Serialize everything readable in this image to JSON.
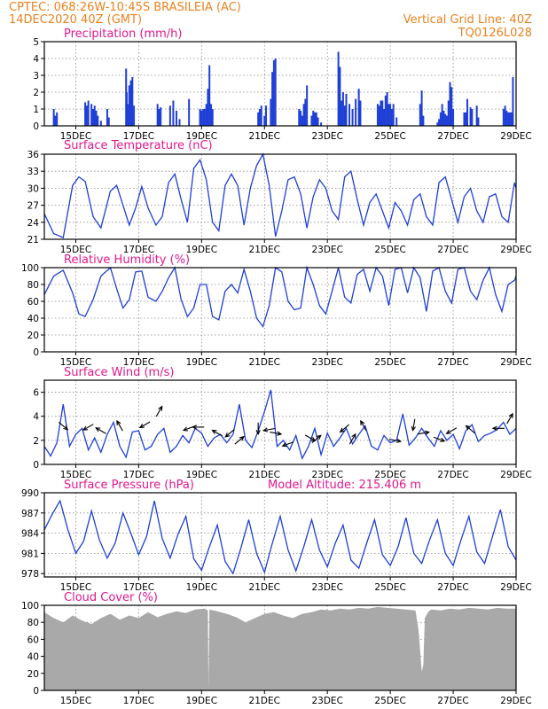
{
  "header": {
    "left_line1": "CPTEC:   068:26W-10:45S   BRASILEIA (AC)",
    "left_line2": "14DEC2020 40Z (GMT)",
    "right_line1": "Vertical Grid Line: 40Z",
    "right_line2": "TQ0126L028"
  },
  "colors": {
    "series": "#1f3fd6",
    "title": "#e0188c",
    "header": "#e8821e",
    "cloud": "#a9a9a9"
  },
  "x_ticks": [
    "15DEC",
    "17DEC",
    "19DEC",
    "21DEC",
    "23DEC",
    "25DEC",
    "27DEC",
    "29DEC"
  ],
  "x_tick_days": [
    15,
    17,
    19,
    21,
    23,
    25,
    27,
    29
  ],
  "x_range": [
    14.0,
    29.0
  ],
  "chart_data": [
    {
      "type": "bar",
      "title": "Precipitation (mm/h)",
      "ylim": [
        0,
        5
      ],
      "yticks": [
        0,
        1,
        2,
        3,
        4,
        5
      ],
      "x": [
        14.3,
        14.35,
        14.4,
        15.3,
        15.35,
        15.4,
        15.5,
        15.55,
        15.6,
        15.65,
        15.7,
        15.8,
        16.0,
        16.05,
        16.6,
        16.62,
        16.65,
        16.7,
        16.75,
        16.8,
        16.85,
        17.6,
        17.65,
        17.7,
        18.0,
        18.1,
        18.2,
        18.3,
        18.6,
        18.95,
        19.0,
        19.05,
        19.1,
        19.15,
        19.2,
        19.25,
        19.3,
        19.35,
        20.8,
        20.85,
        20.9,
        21.0,
        21.05,
        21.2,
        21.25,
        21.3,
        21.35,
        22.1,
        22.15,
        22.2,
        22.25,
        22.3,
        22.35,
        22.5,
        22.55,
        22.6,
        22.65,
        22.7,
        22.8,
        23.35,
        23.4,
        23.45,
        23.5,
        23.55,
        23.6,
        23.7,
        23.8,
        23.9,
        24.0,
        24.05,
        24.6,
        24.65,
        24.7,
        24.75,
        24.8,
        24.85,
        24.9,
        24.95,
        25.0,
        25.05,
        25.1,
        25.2,
        25.95,
        26.0,
        26.05,
        26.5,
        26.55,
        26.6,
        26.65,
        26.7,
        26.75,
        26.8,
        26.85,
        26.9,
        26.95,
        27.0,
        27.35,
        27.4,
        27.45,
        27.55,
        27.6,
        27.75,
        27.8,
        28.6,
        28.65,
        28.7,
        28.75,
        28.8,
        28.85,
        28.9
      ],
      "values": [
        1.0,
        0.6,
        0.8,
        1.4,
        1.2,
        1.5,
        1.3,
        1.0,
        1.2,
        0.9,
        0.6,
        0.3,
        1.0,
        0.5,
        3.4,
        2.0,
        1.3,
        2.4,
        2.7,
        2.9,
        1.2,
        1.3,
        1.0,
        1.1,
        1.2,
        1.5,
        0.9,
        0.4,
        1.6,
        1.0,
        0.9,
        1.0,
        1.0,
        1.3,
        2.2,
        3.6,
        1.3,
        1.0,
        0.8,
        1.0,
        1.2,
        0.6,
        1.2,
        1.6,
        3.2,
        3.9,
        4.0,
        1.0,
        0.9,
        0.6,
        1.3,
        1.6,
        2.4,
        0.6,
        0.9,
        0.8,
        0.8,
        0.5,
        0.2,
        4.4,
        3.5,
        1.5,
        2.0,
        1.2,
        1.9,
        1.3,
        1.0,
        1.6,
        2.2,
        1.5,
        1.3,
        1.2,
        1.5,
        1.5,
        1.0,
        1.8,
        2.0,
        1.3,
        1.3,
        1.0,
        1.3,
        0.5,
        1.3,
        2.1,
        0.6,
        0.2,
        0.4,
        0.8,
        1.3,
        0.9,
        0.7,
        0.6,
        1.5,
        2.6,
        2.3,
        1.0,
        0.8,
        0.8,
        1.6,
        1.1,
        1.0,
        1.2,
        0.5,
        1.0,
        1.2,
        0.9,
        0.8,
        0.8,
        0.8,
        2.9
      ]
    },
    {
      "type": "line",
      "title": "Surface Temperature (nC)",
      "ylim": [
        21,
        36
      ],
      "yticks": [
        21,
        24,
        27,
        30,
        33,
        36
      ],
      "x": [
        14.0,
        14.3,
        14.6,
        14.9,
        15.1,
        15.3,
        15.55,
        15.8,
        16.1,
        16.3,
        16.5,
        16.7,
        16.9,
        17.1,
        17.3,
        17.55,
        17.75,
        17.95,
        18.15,
        18.35,
        18.55,
        18.75,
        18.95,
        19.15,
        19.35,
        19.55,
        19.75,
        19.95,
        20.15,
        20.35,
        20.55,
        20.75,
        20.95,
        21.15,
        21.35,
        21.55,
        21.75,
        21.95,
        22.15,
        22.35,
        22.55,
        22.75,
        22.95,
        23.15,
        23.35,
        23.55,
        23.75,
        23.95,
        24.15,
        24.35,
        24.55,
        24.75,
        24.95,
        25.15,
        25.35,
        25.55,
        25.75,
        25.95,
        26.15,
        26.35,
        26.55,
        26.75,
        26.95,
        27.15,
        27.35,
        27.55,
        27.75,
        27.95,
        28.15,
        28.35,
        28.55,
        28.75,
        28.95,
        29.0
      ],
      "values": [
        25.5,
        22.0,
        21.3,
        30.5,
        32.0,
        31.2,
        25.0,
        23.0,
        29.5,
        30.5,
        27.0,
        23.5,
        26.5,
        30.3,
        26.5,
        23.5,
        25.0,
        31.0,
        32.5,
        28.0,
        24.0,
        33.5,
        35.0,
        31.5,
        24.0,
        22.5,
        30.5,
        32.5,
        30.5,
        23.5,
        30.0,
        34.0,
        36.0,
        30.5,
        21.5,
        26.0,
        31.5,
        32.0,
        29.0,
        23.0,
        28.5,
        31.5,
        30.0,
        26.0,
        24.5,
        32.0,
        33.0,
        28.0,
        23.5,
        27.5,
        29.0,
        26.0,
        23.0,
        27.5,
        26.0,
        23.5,
        28.0,
        29.0,
        25.0,
        23.5,
        31.0,
        32.0,
        28.0,
        24.0,
        28.5,
        30.0,
        26.0,
        24.0,
        28.5,
        29.0,
        25.0,
        24.0,
        31.0,
        30.0
      ]
    },
    {
      "type": "line",
      "title": "Relative Humidity (%)",
      "ylim": [
        0,
        100
      ],
      "yticks": [
        0,
        20,
        40,
        60,
        80,
        100
      ],
      "x": [
        14.0,
        14.3,
        14.6,
        14.9,
        15.1,
        15.3,
        15.55,
        15.8,
        16.1,
        16.3,
        16.5,
        16.7,
        16.9,
        17.1,
        17.3,
        17.55,
        17.75,
        17.95,
        18.15,
        18.35,
        18.55,
        18.75,
        18.95,
        19.15,
        19.35,
        19.55,
        19.75,
        19.95,
        20.15,
        20.35,
        20.55,
        20.75,
        20.95,
        21.15,
        21.35,
        21.55,
        21.75,
        21.95,
        22.15,
        22.35,
        22.55,
        22.75,
        22.95,
        23.15,
        23.35,
        23.55,
        23.75,
        23.95,
        24.15,
        24.35,
        24.55,
        24.75,
        24.95,
        25.15,
        25.35,
        25.55,
        25.75,
        25.95,
        26.15,
        26.35,
        26.55,
        26.75,
        26.95,
        27.15,
        27.35,
        27.55,
        27.75,
        27.95,
        28.15,
        28.35,
        28.55,
        28.75,
        28.95,
        29.0
      ],
      "values": [
        68,
        90,
        97,
        70,
        45,
        42,
        62,
        90,
        100,
        75,
        52,
        62,
        95,
        96,
        65,
        60,
        72,
        88,
        100,
        62,
        42,
        52,
        80,
        80,
        42,
        38,
        72,
        80,
        70,
        98,
        72,
        40,
        30,
        55,
        100,
        95,
        60,
        50,
        52,
        100,
        80,
        55,
        45,
        72,
        100,
        65,
        58,
        92,
        98,
        72,
        100,
        90,
        55,
        98,
        100,
        70,
        100,
        88,
        48,
        96,
        100,
        72,
        58,
        98,
        100,
        72,
        62,
        85,
        100,
        68,
        48,
        80,
        85,
        90
      ]
    },
    {
      "type": "line",
      "title": "Surface Wind (m/s)",
      "ylim": [
        0,
        7
      ],
      "yticks": [
        0,
        2,
        4,
        6
      ],
      "x": [
        14.0,
        14.2,
        14.4,
        14.6,
        14.8,
        15.0,
        15.2,
        15.4,
        15.6,
        15.8,
        16.0,
        16.2,
        16.4,
        16.6,
        16.8,
        17.0,
        17.2,
        17.4,
        17.6,
        17.8,
        18.0,
        18.2,
        18.4,
        18.6,
        18.8,
        19.0,
        19.2,
        19.4,
        19.6,
        19.8,
        20.0,
        20.2,
        20.4,
        20.6,
        20.8,
        21.0,
        21.2,
        21.4,
        21.6,
        21.8,
        22.0,
        22.2,
        22.4,
        22.6,
        22.8,
        23.0,
        23.2,
        23.4,
        23.6,
        23.8,
        24.0,
        24.2,
        24.4,
        24.6,
        24.8,
        25.0,
        25.2,
        25.4,
        25.6,
        25.8,
        26.0,
        26.2,
        26.4,
        26.6,
        26.8,
        27.0,
        27.2,
        27.4,
        27.6,
        27.8,
        28.0,
        28.2,
        28.4,
        28.6,
        28.8,
        29.0
      ],
      "values": [
        1.5,
        0.7,
        1.8,
        5.0,
        1.5,
        2.5,
        3.0,
        1.2,
        2.2,
        1.0,
        2.5,
        3.5,
        1.5,
        0.6,
        2.7,
        2.8,
        1.2,
        1.5,
        2.5,
        3.0,
        1.0,
        1.5,
        2.4,
        1.8,
        3.0,
        2.6,
        1.5,
        2.2,
        2.5,
        1.8,
        2.5,
        5.0,
        2.0,
        1.4,
        2.8,
        4.4,
        6.2,
        1.5,
        2.0,
        1.2,
        2.4,
        0.5,
        1.5,
        3.0,
        0.8,
        2.6,
        1.5,
        2.2,
        3.0,
        1.7,
        2.5,
        3.2,
        1.5,
        1.2,
        2.4,
        1.8,
        2.0,
        4.2,
        1.6,
        2.2,
        3.0,
        2.2,
        1.5,
        2.8,
        2.0,
        2.5,
        1.3,
        2.8,
        3.3,
        1.9,
        2.4,
        2.6,
        2.9,
        3.5,
        2.5,
        3.0
      ],
      "arrows": [
        {
          "x": 14.6,
          "y": 3.2,
          "dir": 320
        },
        {
          "x": 15.4,
          "y": 3.1,
          "dir": 210
        },
        {
          "x": 15.8,
          "y": 2.8,
          "dir": 150
        },
        {
          "x": 16.4,
          "y": 3.2,
          "dir": 120
        },
        {
          "x": 17.2,
          "y": 3.3,
          "dir": 210
        },
        {
          "x": 17.65,
          "y": 4.4,
          "dir": 60
        },
        {
          "x": 18.6,
          "y": 3.0,
          "dir": 200
        },
        {
          "x": 18.9,
          "y": 3.1,
          "dir": 180
        },
        {
          "x": 19.5,
          "y": 2.6,
          "dir": 150
        },
        {
          "x": 19.9,
          "y": 2.6,
          "dir": 220
        },
        {
          "x": 20.2,
          "y": 2.0,
          "dir": 40
        },
        {
          "x": 20.8,
          "y": 3.0,
          "dir": 270
        },
        {
          "x": 21.15,
          "y": 2.9,
          "dir": 190
        },
        {
          "x": 21.35,
          "y": 2.6,
          "dir": 350
        },
        {
          "x": 21.75,
          "y": 1.7,
          "dir": 200
        },
        {
          "x": 22.45,
          "y": 2.2,
          "dir": 330
        },
        {
          "x": 22.65,
          "y": 2.1,
          "dir": 40
        },
        {
          "x": 23.55,
          "y": 3.0,
          "dir": 220
        },
        {
          "x": 23.8,
          "y": 2.1,
          "dir": 60
        },
        {
          "x": 24.15,
          "y": 3.2,
          "dir": 120
        },
        {
          "x": 25.15,
          "y": 2.0,
          "dir": 350
        },
        {
          "x": 25.75,
          "y": 3.3,
          "dir": 260
        },
        {
          "x": 26.05,
          "y": 2.6,
          "dir": 10
        },
        {
          "x": 26.55,
          "y": 2.1,
          "dir": 340
        },
        {
          "x": 26.95,
          "y": 2.8,
          "dir": 210
        },
        {
          "x": 27.55,
          "y": 2.9,
          "dir": 140
        },
        {
          "x": 28.45,
          "y": 3.0,
          "dir": 180
        },
        {
          "x": 28.8,
          "y": 3.8,
          "dir": 60
        }
      ]
    },
    {
      "type": "line",
      "title": "Surface Pressure (hPa)",
      "subtitle": "Model Altitude: 215.406  m",
      "ylim": [
        977.5,
        990
      ],
      "yticks": [
        978,
        981,
        984,
        987,
        990
      ],
      "x": [
        14.0,
        14.25,
        14.5,
        14.75,
        15.0,
        15.25,
        15.5,
        15.75,
        16.0,
        16.25,
        16.5,
        16.75,
        17.0,
        17.25,
        17.5,
        17.75,
        18.0,
        18.25,
        18.5,
        18.75,
        19.0,
        19.25,
        19.5,
        19.75,
        20.0,
        20.25,
        20.5,
        20.75,
        21.0,
        21.25,
        21.5,
        21.75,
        22.0,
        22.25,
        22.5,
        22.75,
        23.0,
        23.25,
        23.5,
        23.75,
        24.0,
        24.25,
        24.5,
        24.75,
        25.0,
        25.25,
        25.5,
        25.75,
        26.0,
        26.25,
        26.5,
        26.75,
        27.0,
        27.25,
        27.5,
        27.75,
        28.0,
        28.25,
        28.5,
        28.75,
        29.0
      ],
      "values": [
        984.5,
        986.8,
        988.8,
        984.5,
        981.0,
        982.8,
        987.3,
        983.0,
        980.3,
        982.5,
        987.0,
        984.0,
        980.8,
        983.5,
        988.8,
        983.2,
        980.3,
        983.8,
        986.5,
        980.2,
        978.5,
        982.0,
        985.2,
        979.8,
        978.0,
        981.8,
        986.0,
        981.0,
        978.2,
        982.5,
        986.5,
        981.5,
        978.4,
        982.0,
        986.0,
        981.5,
        979.0,
        982.5,
        985.2,
        980.0,
        978.8,
        982.5,
        986.0,
        980.8,
        979.2,
        982.0,
        986.3,
        981.0,
        979.5,
        983.0,
        986.0,
        981.0,
        979.2,
        983.0,
        986.5,
        981.2,
        979.5,
        983.5,
        987.5,
        982.0,
        980.0
      ]
    },
    {
      "type": "area",
      "title": "Cloud Cover (%)",
      "ylim": [
        0,
        100
      ],
      "yticks": [
        0,
        20,
        40,
        60,
        80,
        100
      ],
      "x": [
        14.0,
        14.3,
        14.6,
        14.9,
        15.2,
        15.5,
        15.8,
        16.1,
        16.4,
        16.7,
        17.0,
        17.3,
        17.6,
        17.9,
        18.2,
        18.5,
        18.8,
        19.1,
        19.2,
        19.22,
        19.25,
        19.5,
        19.8,
        20.1,
        20.4,
        20.7,
        21.0,
        21.3,
        21.6,
        21.9,
        22.2,
        22.5,
        22.8,
        23.1,
        23.4,
        23.7,
        24.0,
        24.3,
        24.6,
        24.9,
        25.2,
        25.5,
        25.8,
        25.9,
        26.0,
        26.05,
        26.1,
        26.2,
        26.3,
        26.6,
        26.9,
        27.2,
        27.5,
        27.8,
        28.1,
        28.4,
        28.7,
        29.0
      ],
      "values": [
        92,
        85,
        80,
        88,
        82,
        78,
        85,
        90,
        83,
        88,
        85,
        92,
        86,
        90,
        93,
        91,
        95,
        96,
        94,
        2,
        95,
        93,
        90,
        86,
        80,
        85,
        90,
        92,
        88,
        85,
        90,
        92,
        95,
        94,
        96,
        95,
        97,
        96,
        98,
        97,
        96,
        95,
        94,
        70,
        22,
        30,
        85,
        92,
        95,
        94,
        96,
        95,
        97,
        96,
        95,
        97,
        96,
        96
      ]
    }
  ]
}
